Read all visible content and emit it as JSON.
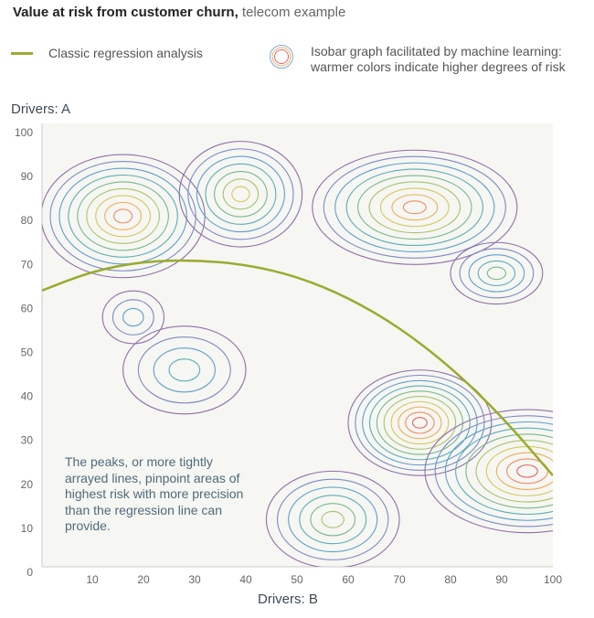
{
  "header": {
    "title_bold": "Value at risk from customer churn,",
    "title_rest": "telecom example"
  },
  "legend": {
    "regression_label": "Classic regression analysis",
    "isobar_label": "Isobar graph facilitated by machine learning: warmer colors indicate higher degrees of risk",
    "regression_color": "#9aab2e"
  },
  "annotation": "The peaks, or more tightly arrayed lines, pinpoint areas of highest risk with more precision than the regression line can provide.",
  "chart_data": {
    "type": "contour",
    "xlabel": "Drivers: B",
    "ylabel": "Drivers: A",
    "xlim": [
      0,
      100
    ],
    "ylim": [
      0,
      100
    ],
    "xticks": [
      "10",
      "20",
      "30",
      "40",
      "50",
      "60",
      "70",
      "80",
      "90",
      "100"
    ],
    "yticks": [
      "0",
      "10",
      "20",
      "30",
      "40",
      "50",
      "60",
      "70",
      "80",
      "90",
      "100"
    ],
    "level_colors": [
      "#8f6fa8",
      "#7d8ac4",
      "#5e9fcb",
      "#5aaeb4",
      "#78b98c",
      "#a6c46c",
      "#d4c95d",
      "#ebb15c",
      "#ee8d60",
      "#e26467"
    ],
    "risk_peaks": [
      {
        "x": 16,
        "y": 81,
        "rx": 16,
        "ry": 14,
        "levels": 9
      },
      {
        "x": 39,
        "y": 86,
        "rx": 12,
        "ry": 12,
        "levels": 7
      },
      {
        "x": 73,
        "y": 83,
        "rx": 20,
        "ry": 13,
        "levels": 9
      },
      {
        "x": 74,
        "y": 34,
        "rx": 14,
        "ry": 12,
        "levels": 10
      },
      {
        "x": 95,
        "y": 23,
        "rx": 20,
        "ry": 14,
        "levels": 10
      },
      {
        "x": 57,
        "y": 12,
        "rx": 13,
        "ry": 11,
        "levels": 6
      },
      {
        "x": 28,
        "y": 46,
        "rx": 12,
        "ry": 10,
        "levels": 4
      },
      {
        "x": 89,
        "y": 68,
        "rx": 9,
        "ry": 7,
        "levels": 5
      },
      {
        "x": 18,
        "y": 58,
        "rx": 6,
        "ry": 6,
        "levels": 3
      }
    ],
    "regression": {
      "x": [
        0,
        10,
        20,
        30,
        40,
        50,
        60,
        70,
        80,
        90,
        100
      ],
      "y": [
        64,
        68.5,
        70.7,
        71,
        70,
        67.3,
        62.5,
        55.7,
        46.7,
        35.5,
        22
      ]
    }
  }
}
